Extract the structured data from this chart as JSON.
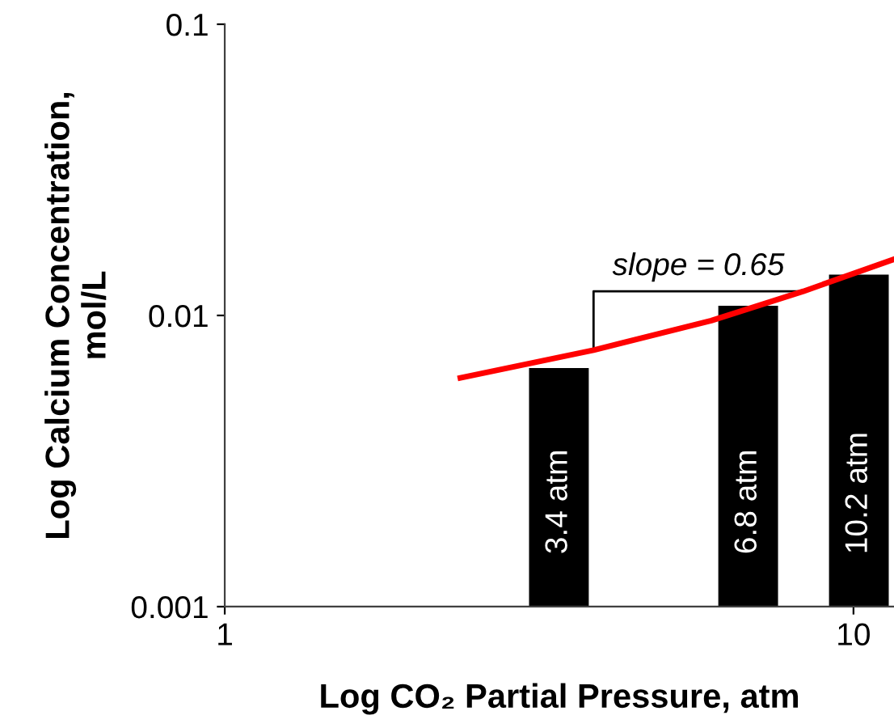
{
  "chart_data": {
    "type": "bar",
    "xlabel": "Log CO₂ Partial Pressure, atm",
    "ylabel": "Log Calcium Concentration,\nmol/L",
    "log": "xy",
    "xlim": [
      1,
      11.6
    ],
    "xticks": [
      1,
      10
    ],
    "ylim": [
      0.001,
      0.1
    ],
    "yticks": [
      0.1,
      0.01,
      0.001
    ],
    "grid": false,
    "legend": false,
    "annotations": [
      {
        "text": "slope = 0.65",
        "x": 3.86,
        "y": 0.0076
      },
      "3.4 atm",
      "6.8 atm",
      "10.2 atm"
    ],
    "series": [
      {
        "color": "#000000",
        "x": [
          3.4,
          6.8,
          10.2
        ],
        "values": [
          0.0066,
          0.0108,
          0.0138
        ]
      },
      {
        "type": "line",
        "color": "#ff0000",
        "x": [
          2.37,
          3.86,
          5.94,
          8.32,
          11.6
        ],
        "values": [
          0.0061,
          0.0076,
          0.0096,
          0.0121,
          0.0156
        ]
      }
    ]
  }
}
